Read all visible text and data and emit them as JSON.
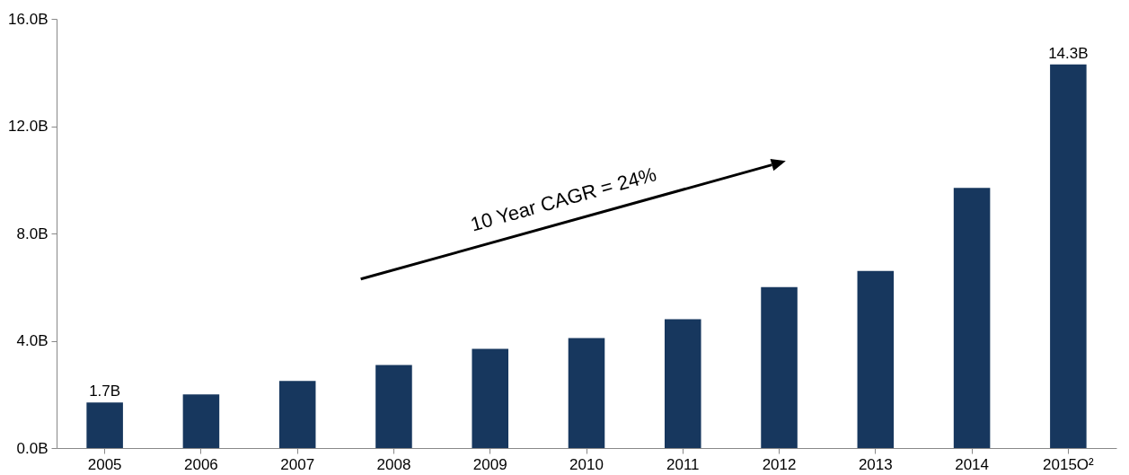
{
  "chart_data": {
    "type": "bar",
    "categories": [
      "2005",
      "2006",
      "2007",
      "2008",
      "2009",
      "2010",
      "2011",
      "2012",
      "2013",
      "2014",
      "2015O²"
    ],
    "values": [
      1.7,
      2.0,
      2.5,
      3.1,
      3.7,
      4.1,
      4.8,
      6.0,
      6.6,
      9.7,
      14.3
    ],
    "value_labels": [
      "1.7B",
      null,
      null,
      null,
      null,
      null,
      null,
      null,
      null,
      null,
      "14.3B"
    ],
    "color": "#17375e",
    "ylim": [
      0,
      16
    ],
    "yticks": [
      {
        "value": 0,
        "label": "0.0B"
      },
      {
        "value": 4,
        "label": "4.0B"
      },
      {
        "value": 8,
        "label": "8.0B"
      },
      {
        "value": 12,
        "label": "12.0B"
      },
      {
        "value": 16,
        "label": "16.0B"
      }
    ],
    "grid": false,
    "annotations": [
      "10 Year CAGR = 24%"
    ]
  }
}
